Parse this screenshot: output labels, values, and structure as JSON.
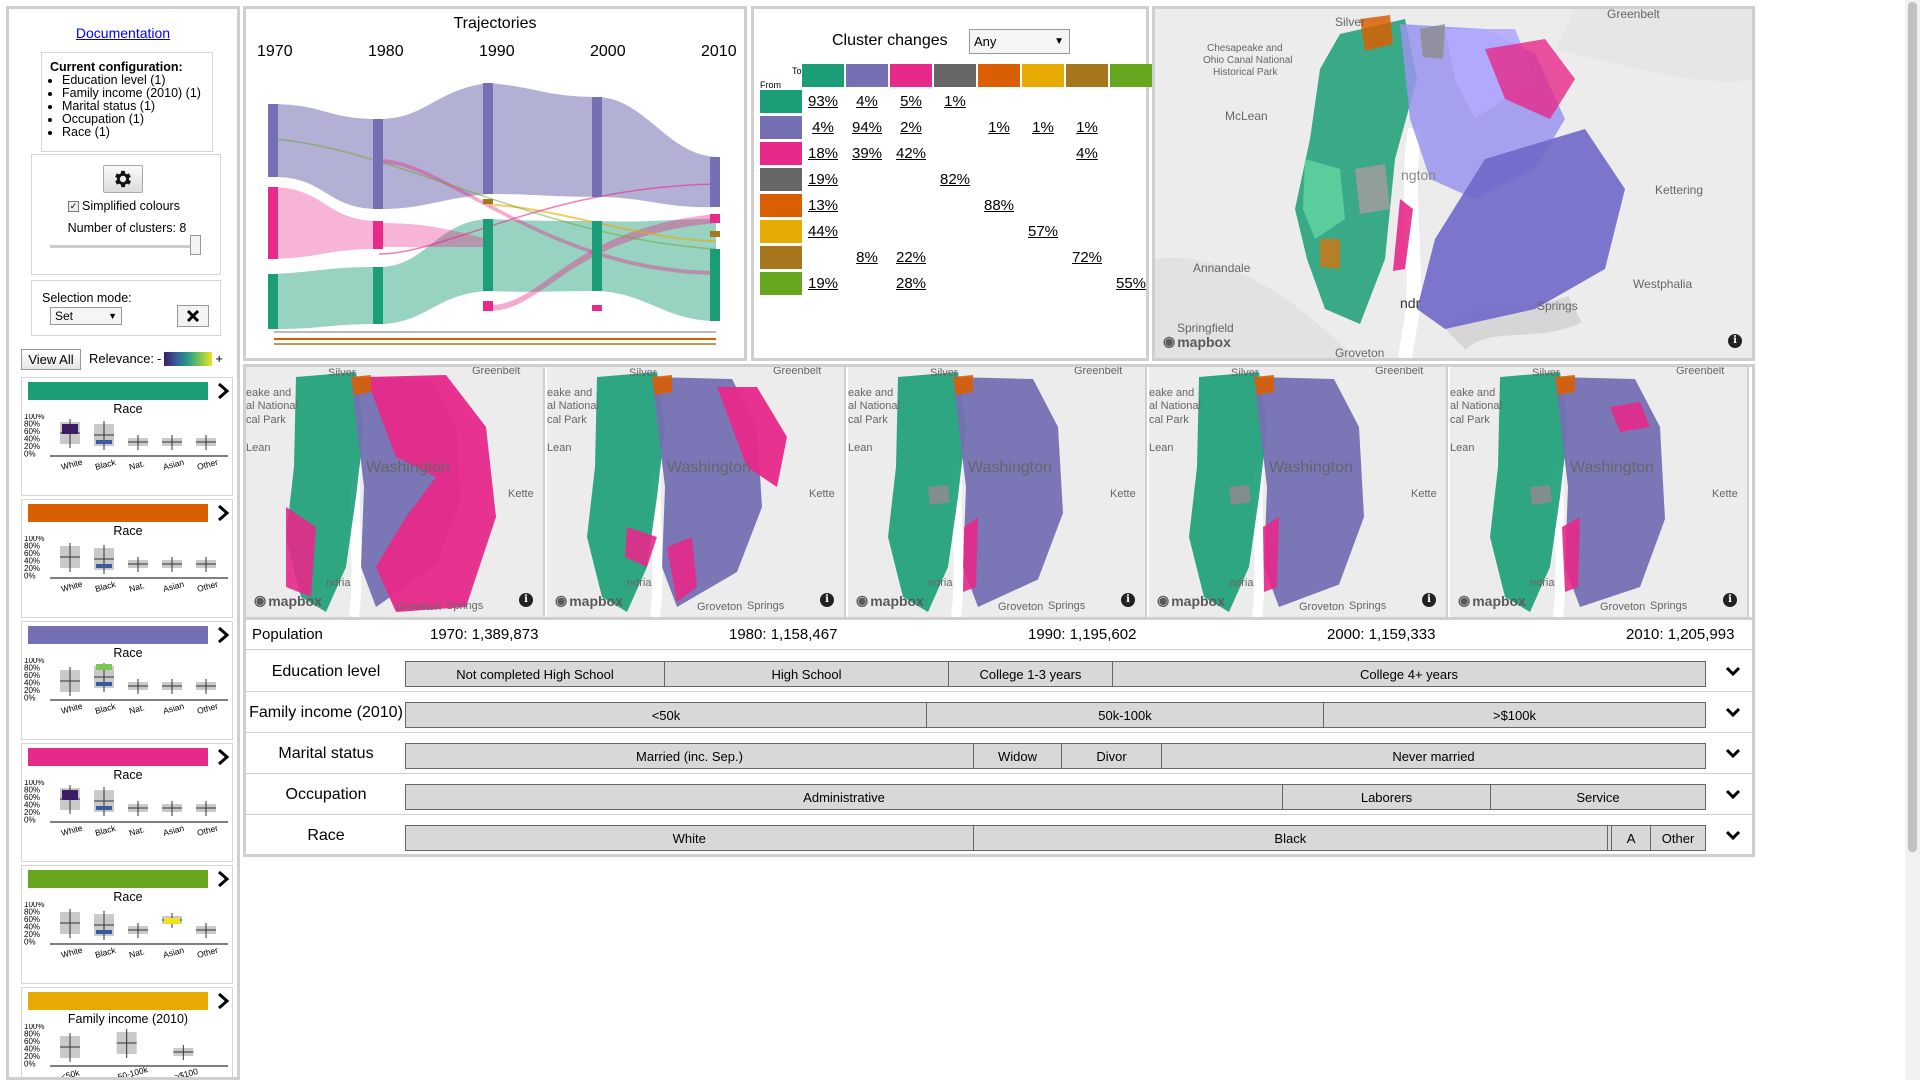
{
  "sidebar": {
    "documentation_link": "Documentation",
    "config_title": "Current configuration:",
    "config_items": [
      "Education level (1)",
      "Family income (2010) (1)",
      "Marital status (1)",
      "Occupation (1)",
      "Race (1)"
    ],
    "simplified_colours_label": "Simplified colours",
    "simplified_colours_checked": true,
    "clusters_label": "Number of clusters: 8",
    "clusters_slider_value": 8,
    "selection_mode_label": "Selection mode:",
    "selection_mode_value": "Set",
    "view_all_label": "View All",
    "relevance_label": "Relevance:",
    "relevance_minus": "-",
    "relevance_plus": "+",
    "cluster_cards": [
      {
        "color": "#1b9e77",
        "title": "Race",
        "ticks": [
          "White",
          "Black",
          "Nat.",
          "Asian",
          "Other"
        ]
      },
      {
        "color": "#d95f02",
        "title": "Race",
        "ticks": [
          "White",
          "Black",
          "Nat.",
          "Asian",
          "Other"
        ]
      },
      {
        "color": "#7570b3",
        "title": "Race",
        "ticks": [
          "White",
          "Black",
          "Nat.",
          "Asian",
          "Other"
        ]
      },
      {
        "color": "#e7298a",
        "title": "Race",
        "ticks": [
          "White",
          "Black",
          "Nat.",
          "Asian",
          "Other"
        ]
      },
      {
        "color": "#66a61e",
        "title": "Race",
        "ticks": [
          "White",
          "Black",
          "Nat.",
          "Asian",
          "Other"
        ]
      },
      {
        "color": "#e6ab02",
        "title": "Family income (2010)",
        "ticks": [
          "<50k",
          "50-100k",
          ">$100"
        ]
      }
    ],
    "y_ticks": [
      "100%",
      "80%",
      "60%",
      "40%",
      "20%",
      "0%"
    ]
  },
  "trajectories": {
    "title": "Trajectories",
    "years": [
      "1970",
      "1980",
      "1990",
      "2000",
      "2010"
    ]
  },
  "cluster_changes": {
    "title": "Cluster changes",
    "filter_value": "Any",
    "to_label": "To",
    "from_label": "From",
    "colors": [
      "#1b9e77",
      "#7570b3",
      "#e7298a",
      "#666666",
      "#d95f02",
      "#e6ab02",
      "#a6761d",
      "#66a61e"
    ],
    "matrix": [
      [
        "93%",
        "4%",
        "5%",
        "1%",
        "",
        "",
        "",
        ""
      ],
      [
        "4%",
        "94%",
        "2%",
        "",
        "1%",
        "1%",
        "1%",
        ""
      ],
      [
        "18%",
        "39%",
        "42%",
        "",
        "",
        "",
        "4%",
        ""
      ],
      [
        "19%",
        "",
        "",
        "82%",
        "",
        "",
        "",
        ""
      ],
      [
        "13%",
        "",
        "",
        "",
        "88%",
        "",
        "",
        ""
      ],
      [
        "44%",
        "",
        "",
        "",
        "",
        "57%",
        "",
        ""
      ],
      [
        "",
        "8%",
        "22%",
        "",
        "",
        "",
        "72%",
        ""
      ],
      [
        "19%",
        "",
        "28%",
        "",
        "",
        "",
        "",
        "55%"
      ]
    ]
  },
  "main_map": {
    "place_labels": [
      "Silver",
      "Greenbelt",
      "Chesapeake and",
      "Ohio Canal National",
      "Historical Park",
      "McLean",
      "Kettering",
      "Annandale",
      "Westphalia",
      "Springfield",
      "ngton",
      "Groveton",
      "Springs",
      "ndr"
    ],
    "logo": "mapbox"
  },
  "map_strip": {
    "place_labels": [
      "Silver",
      "Greenbelt",
      "eake and",
      "al National",
      "cal Park",
      "Lean",
      "Washington",
      "Kette",
      "ndria",
      "Groveton",
      "Springs"
    ],
    "logo": "mapbox"
  },
  "population": {
    "label": "Population",
    "values": [
      "1970: 1,389,873",
      "1980: 1,158,467",
      "1990: 1,195,602",
      "2000: 1,159,333",
      "2010: 1,205,993"
    ]
  },
  "attributes": [
    {
      "label": "Education level",
      "segments": [
        "Not completed High School",
        "High School",
        "College 1-3 years",
        "College 4+ years"
      ],
      "shares": [
        0.2,
        0.218,
        0.126,
        0.456
      ]
    },
    {
      "label": "Family income (2010)",
      "segments": [
        "<50k",
        "50k-100k",
        ">$100k"
      ],
      "shares": [
        0.401,
        0.305,
        0.294
      ]
    },
    {
      "label": "Marital status",
      "segments": [
        "Married (inc. Sep.)",
        "Widow",
        "Divor",
        "Never married"
      ],
      "shares": [
        0.437,
        0.068,
        0.077,
        0.418
      ]
    },
    {
      "label": "Occupation",
      "segments": [
        "Administrative",
        "Laborers",
        "Service"
      ],
      "shares": [
        0.675,
        0.16,
        0.165
      ]
    },
    {
      "label": "Race",
      "segments": [
        "White",
        "Black",
        "",
        "A",
        "Other"
      ],
      "shares": [
        0.437,
        0.488,
        0.003,
        0.03,
        0.042
      ]
    }
  ]
}
